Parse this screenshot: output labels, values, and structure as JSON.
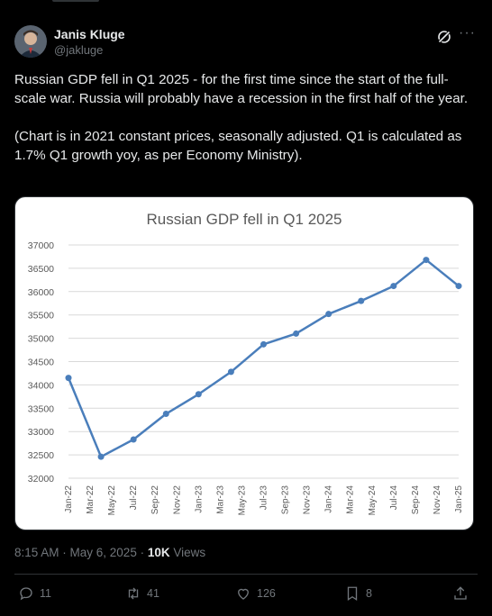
{
  "author": {
    "name": "Janis Kluge",
    "handle": "@jakluge"
  },
  "post": {
    "paragraph1": "Russian GDP fell in Q1 2025 - for the first time since the start of the full-scale war. Russia will probably have a recession in the first half of the year.",
    "paragraph2": "(Chart is in 2021 constant prices, seasonally adjusted. Q1 is calculated as 1.7% Q1 growth yoy, as per Economy Ministry)."
  },
  "meta": {
    "timestamp": "8:15 AM · May 6, 2025 · ",
    "views_count": "10K",
    "views_label": " Views"
  },
  "actions": {
    "replies": "11",
    "reposts": "41",
    "likes": "126",
    "bookmarks": "8"
  },
  "icons": [
    "grok-icon",
    "more-icon",
    "reply-icon",
    "repost-icon",
    "like-icon",
    "bookmark-icon",
    "share-icon"
  ],
  "colors": {
    "background": "#000000",
    "line": "#4a7ebb",
    "muted": "#71767b"
  },
  "chart_data": {
    "type": "line",
    "title": "Russian GDP fell in Q1 2025",
    "categories": [
      "Jan-22",
      "Mar-22",
      "May-22",
      "Jul-22",
      "Sep-22",
      "Nov-22",
      "Jan-23",
      "Mar-23",
      "May-23",
      "Jul-23",
      "Sep-23",
      "Nov-23",
      "Jan-24",
      "Mar-24",
      "May-24",
      "Jul-24",
      "Sep-24",
      "Nov-24",
      "Jan-25"
    ],
    "x": [
      "Jan-22",
      "Apr-22",
      "Jul-22",
      "Oct-22",
      "Jan-23",
      "Apr-23",
      "Jul-23",
      "Oct-23",
      "Jan-24",
      "Apr-24",
      "Jul-24",
      "Oct-24",
      "Jan-25"
    ],
    "series": [
      {
        "values": [
          34150,
          32460,
          32830,
          33380,
          33800,
          34280,
          34870,
          35100,
          35520,
          35800,
          36120,
          36680,
          36120
        ]
      }
    ],
    "y_ticks": [
      32000,
      32500,
      33000,
      33500,
      34000,
      34500,
      35000,
      35500,
      36000,
      36500,
      37000
    ],
    "ylim": [
      32000,
      37000
    ],
    "grid": true,
    "xlabel": "",
    "ylabel": ""
  }
}
